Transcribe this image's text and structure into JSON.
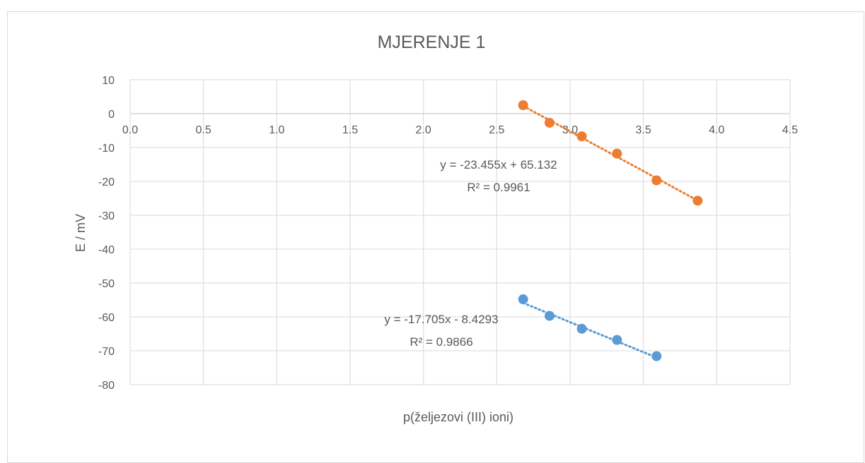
{
  "chart_data": {
    "type": "scatter",
    "title": "MJERENJE 1",
    "xlabel": "p(željezovi (III) ioni)",
    "ylabel": "E / mV",
    "xlim": [
      0,
      4.5
    ],
    "ylim": [
      -80,
      10
    ],
    "x_ticks": [
      "0.0",
      "0.5",
      "1.0",
      "1.5",
      "2.0",
      "2.5",
      "3.0",
      "3.5",
      "4.0",
      "4.5"
    ],
    "y_ticks": [
      "10",
      "0",
      "-10",
      "-20",
      "-30",
      "-40",
      "-50",
      "-60",
      "-70",
      "-80"
    ],
    "grid": true,
    "legend": "none",
    "series": [
      {
        "color": "#ED7D31",
        "x": [
          2.68,
          2.86,
          3.08,
          3.32,
          3.59,
          3.87
        ],
        "y": [
          2.5,
          -2.7,
          -6.7,
          -11.8,
          -19.7,
          -25.7
        ],
        "trendline": {
          "slope": -23.455,
          "intercept": 65.132,
          "x_from": 2.68,
          "x_to": 3.87
        },
        "equation": "y = -23.455x + 65.132",
        "r2": "R² = 0.9961"
      },
      {
        "color": "#5B9BD5",
        "x": [
          2.68,
          2.86,
          3.08,
          3.32,
          3.59
        ],
        "y": [
          -54.8,
          -59.7,
          -63.5,
          -66.8,
          -71.6
        ],
        "trendline": {
          "slope": -17.705,
          "intercept": -8.4293,
          "x_from": 2.68,
          "x_to": 3.59
        },
        "equation": "y = -17.705x - 8.4293",
        "r2": "R² = 0.9866"
      }
    ]
  }
}
